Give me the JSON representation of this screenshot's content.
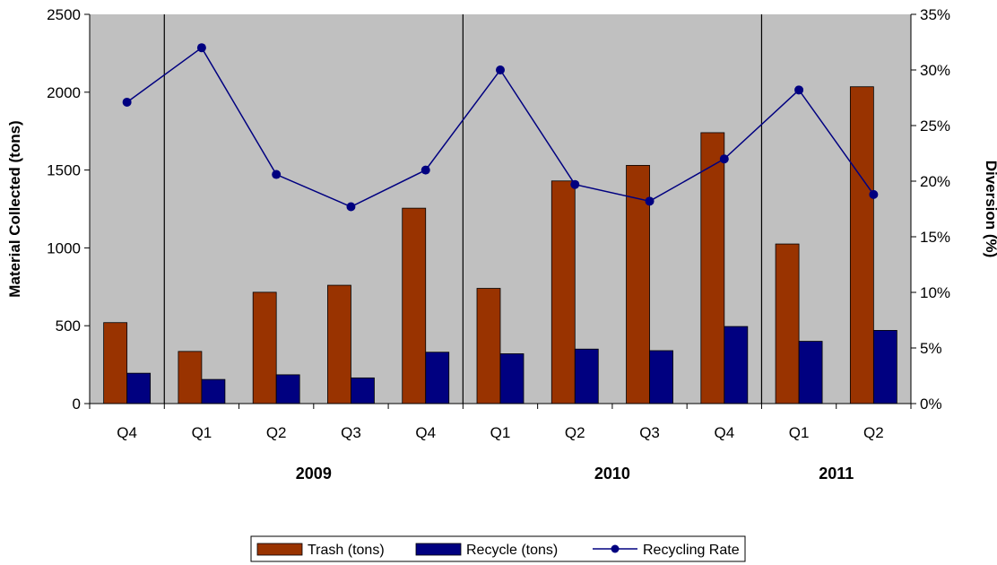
{
  "chart_data": {
    "type": "bar",
    "categories": [
      "Q4",
      "Q1",
      "Q2",
      "Q3",
      "Q4",
      "Q1",
      "Q2",
      "Q3",
      "Q4",
      "Q1",
      "Q2"
    ],
    "groups": [
      {
        "label": "2009",
        "from": 1,
        "to": 4
      },
      {
        "label": "2010",
        "from": 5,
        "to": 8
      },
      {
        "label": "2011",
        "from": 9,
        "to": 10
      }
    ],
    "series": [
      {
        "name": "Trash (tons)",
        "type": "bar",
        "axis": "left",
        "color": "#993300",
        "values": [
          520,
          335,
          715,
          760,
          1255,
          740,
          1430,
          1530,
          1740,
          1025,
          2035
        ]
      },
      {
        "name": "Recycle (tons)",
        "type": "bar",
        "axis": "left",
        "color": "#000080",
        "values": [
          195,
          155,
          185,
          165,
          330,
          320,
          350,
          340,
          495,
          400,
          470
        ]
      },
      {
        "name": "Recycling Rate",
        "type": "line",
        "axis": "right",
        "color": "#000080",
        "values": [
          27.1,
          32.0,
          20.6,
          17.7,
          21.0,
          30.0,
          19.7,
          18.2,
          22.0,
          28.2,
          18.8
        ]
      }
    ],
    "ylabel": "Material Collected (tons)",
    "y2label": "Diversion (%)",
    "ylim": [
      0,
      2500
    ],
    "yticks": [
      0,
      500,
      1000,
      1500,
      2000,
      2500
    ],
    "y2lim": [
      0,
      35
    ],
    "y2ticks": [
      "0%",
      "5%",
      "10%",
      "15%",
      "20%",
      "25%",
      "30%",
      "35%"
    ],
    "y2tick_values": [
      0,
      5,
      10,
      15,
      20,
      25,
      30,
      35
    ],
    "plot_background": "#c0c0c0",
    "legend": "bottom"
  }
}
